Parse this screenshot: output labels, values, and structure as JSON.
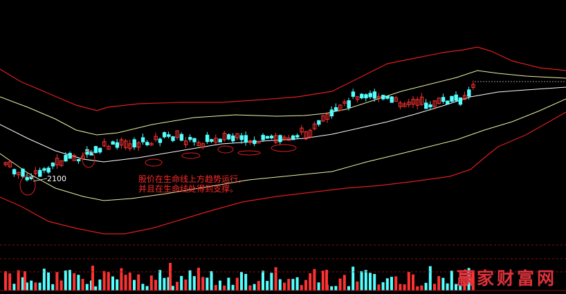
{
  "chart_data": {
    "type": "candlestick",
    "indicator": "Bollinger-style bands (outer red, middle yellow)",
    "colors": {
      "up": "#ff3232",
      "down": "#54ffff",
      "outer_band": "#e01e1e",
      "inner_band": "#f2f2a8",
      "center_band": "#ffffff",
      "volume_up": "#ff3232",
      "volume_down": "#54ffff",
      "grid": "#8a1010",
      "ellipse": "#e02020"
    },
    "support_level_label": "2100",
    "annotation_lines": [
      "股价在生命线上方趋势运行，",
      "并且在生命线处得到支撑。"
    ],
    "watermark": "赢家财富网",
    "price_range": [
      1650,
      2450
    ],
    "candle_count": 110
  }
}
